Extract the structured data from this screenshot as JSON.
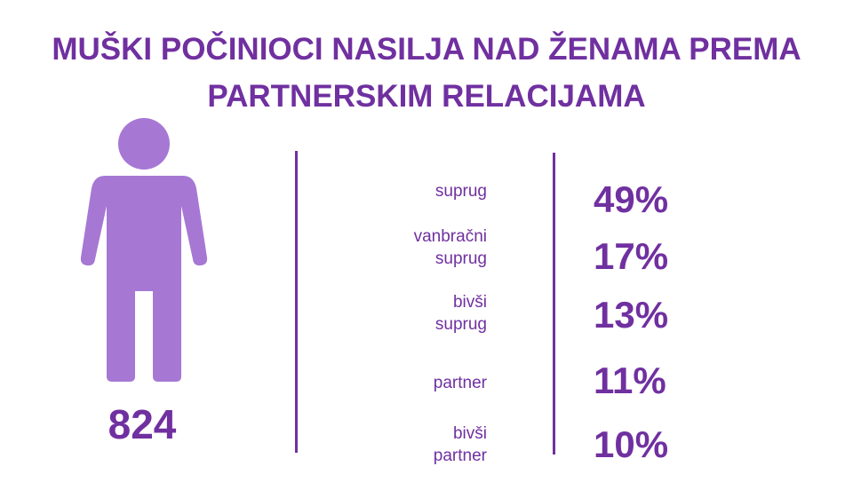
{
  "title": {
    "line1": "MUŠKI POČINIOCI NASILJA NAD ŽENAMA PREMA",
    "line2": "PARTNERSKIM RELACIJAMA"
  },
  "total": "824",
  "icon": "male-person-icon",
  "colors": {
    "accent": "#7030a0",
    "figure": "#a678d4"
  },
  "rows": [
    {
      "label_lines": [
        "suprug"
      ],
      "percent": "49%"
    },
    {
      "label_lines": [
        "vanbračni",
        "suprug"
      ],
      "percent": "17%"
    },
    {
      "label_lines": [
        "bivši",
        "suprug"
      ],
      "percent": "13%"
    },
    {
      "label_lines": [
        "partner"
      ],
      "percent": "11%"
    },
    {
      "label_lines": [
        "bivši",
        "partner"
      ],
      "percent": "10%"
    }
  ]
}
